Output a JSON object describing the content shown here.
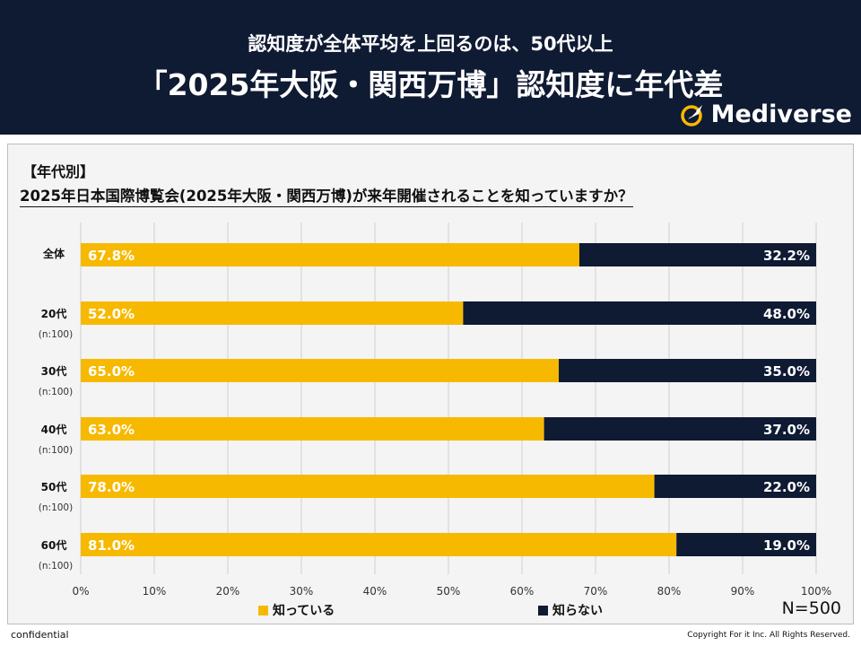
{
  "header": {
    "subtitle": "認知度が全体平均を上回るのは、50代以上",
    "title": "「2025年大阪・関西万博」認知度に年代差",
    "brand": "Mediverse"
  },
  "chart_data": {
    "type": "bar",
    "orientation": "horizontal",
    "stacked": true,
    "section_label": "【年代別】",
    "title": "2025年日本国際博覧会(2025年大阪・関西万博)が来年開催されることを知っていますか？",
    "categories": [
      "全体",
      "20代",
      "30代",
      "40代",
      "50代",
      "60代"
    ],
    "category_notes": [
      "",
      "(n:100)",
      "(n:100)",
      "(n:100)",
      "(n:100)",
      "(n:100)"
    ],
    "series": [
      {
        "name": "知っている",
        "color": "#f7b900",
        "values": [
          67.8,
          52.0,
          65.0,
          63.0,
          78.0,
          81.0
        ],
        "labels": [
          "67.8%",
          "52.0%",
          "65.0%",
          "63.0%",
          "78.0%",
          "81.0%"
        ]
      },
      {
        "name": "知らない",
        "color": "#0f1a33",
        "values": [
          32.2,
          48.0,
          35.0,
          37.0,
          22.0,
          19.0
        ],
        "labels": [
          "32.2%",
          "48.0%",
          "35.0%",
          "37.0%",
          "22.0%",
          "19.0%"
        ]
      }
    ],
    "xlim": [
      0,
      100
    ],
    "xticks": [
      "0%",
      "10%",
      "20%",
      "30%",
      "40%",
      "50%",
      "60%",
      "70%",
      "80%",
      "90%",
      "100%"
    ],
    "grid": true,
    "n_label": "N=500"
  },
  "footer": {
    "left": "confidential",
    "right": "Copyright For it Inc. All Rights Reserved."
  }
}
